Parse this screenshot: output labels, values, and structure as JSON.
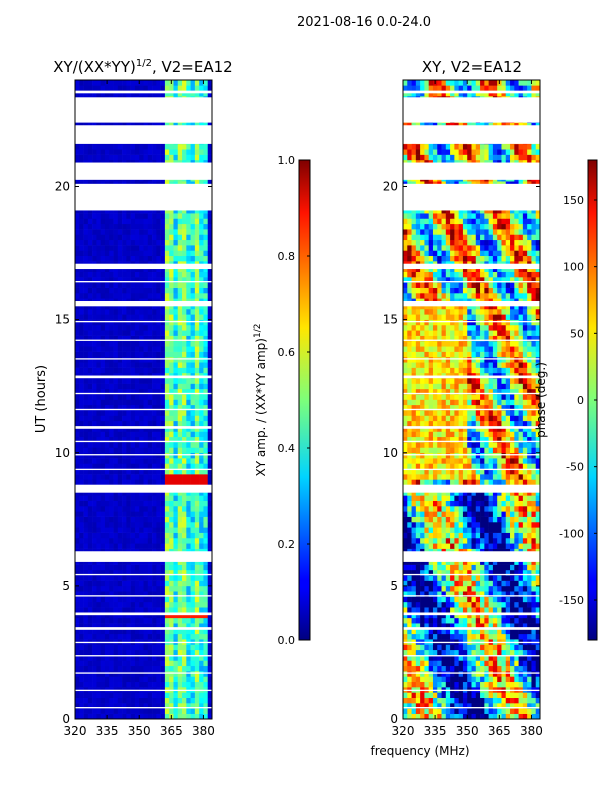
{
  "chart_data": {
    "type": "heatmap",
    "suptitle": "2021-08-16 0.0-24.0",
    "xlabel": "frequency (MHz)",
    "panels": [
      {
        "title_main": "XY/(XX*YY)",
        "title_exp": "1/2",
        "title_suffix": ", V2=EA12",
        "ylabel": "UT (hours)",
        "xlim": [
          320,
          384
        ],
        "ylim": [
          0,
          24
        ],
        "xticks": [
          320,
          335,
          350,
          365,
          380
        ],
        "yticks": [
          0,
          5,
          10,
          15,
          20
        ],
        "colorbar": {
          "label_main": "XY amp. / (XX*YY amp)",
          "label_exp": "1/2",
          "range": [
            0.0,
            1.0
          ],
          "ticks": [
            "0.0",
            "0.2",
            "0.4",
            "0.6",
            "0.8",
            "1.0"
          ],
          "tick_values": [
            0.0,
            0.2,
            0.4,
            0.6,
            0.8,
            1.0
          ]
        }
      },
      {
        "title_main": "XY, V2=EA12",
        "ylabel": "",
        "xlim": [
          320,
          384
        ],
        "ylim": [
          0,
          24
        ],
        "xticks": [
          320,
          335,
          350,
          365,
          380
        ],
        "yticks": [
          0,
          5,
          10,
          15,
          20
        ],
        "colorbar": {
          "label_main": "phase (deg.)",
          "range": [
            -180,
            180
          ],
          "ticks": [
            "-150",
            "-100",
            "-50",
            "0",
            "50",
            "100",
            "150"
          ],
          "tick_values": [
            -150,
            -100,
            -50,
            0,
            50,
            100,
            150
          ]
        }
      }
    ],
    "data_gaps_hours": [
      [
        0.4,
        0.45
      ],
      [
        1.05,
        1.1
      ],
      [
        1.7,
        1.75
      ],
      [
        2.35,
        2.4
      ],
      [
        2.85,
        2.9
      ],
      [
        3.35,
        3.45
      ],
      [
        3.9,
        4.0
      ],
      [
        4.6,
        4.65
      ],
      [
        5.4,
        5.45
      ],
      [
        5.9,
        6.3
      ],
      [
        8.5,
        8.8
      ],
      [
        9.35,
        9.4
      ],
      [
        9.9,
        9.95
      ],
      [
        10.4,
        10.45
      ],
      [
        10.9,
        11.0
      ],
      [
        11.6,
        11.65
      ],
      [
        12.2,
        12.25
      ],
      [
        12.8,
        12.9
      ],
      [
        13.5,
        13.55
      ],
      [
        14.2,
        14.25
      ],
      [
        14.9,
        14.95
      ],
      [
        15.5,
        15.7
      ],
      [
        16.4,
        16.45
      ],
      [
        16.9,
        17.1
      ],
      [
        19.1,
        20.1
      ],
      [
        20.25,
        20.9
      ],
      [
        21.6,
        22.3
      ],
      [
        22.4,
        23.35
      ],
      [
        23.5,
        23.6
      ]
    ]
  }
}
